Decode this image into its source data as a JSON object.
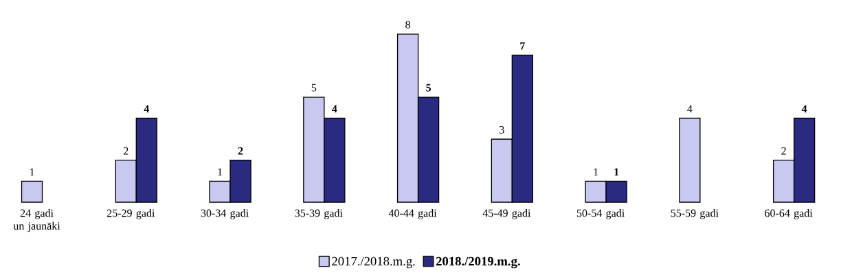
{
  "chart_data": {
    "type": "bar",
    "categories": [
      "24 gadi un jaunāki",
      "25-29 gadi",
      "30-34 gadi",
      "35-39 gadi",
      "40-44 gadi",
      "45-49 gadi",
      "50-54 gadi",
      "55-59 gadi",
      "60-64 gadi"
    ],
    "series": [
      {
        "name": "2017./2018.m.g.",
        "color": "#c8c8f0",
        "values": [
          1,
          2,
          1,
          5,
          8,
          3,
          1,
          4,
          2
        ]
      },
      {
        "name": "2018./2019.m.g.",
        "color": "#2a2a80",
        "values": [
          null,
          4,
          2,
          4,
          5,
          7,
          1,
          null,
          4
        ]
      }
    ],
    "data_labels": true,
    "legend": "bottom"
  }
}
